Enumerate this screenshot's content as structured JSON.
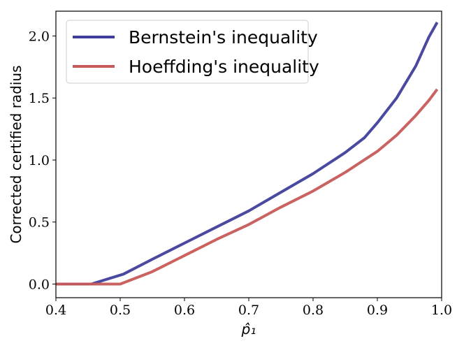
{
  "chart_data": {
    "type": "line",
    "xlabel": "p̂₁",
    "ylabel": "Corrected certified radius",
    "xlim": [
      0.4,
      1.0
    ],
    "ylim": [
      -0.11,
      2.2
    ],
    "xticks": [
      0.4,
      0.5,
      0.6,
      0.7,
      0.8,
      0.9,
      1.0
    ],
    "xtick_labels": [
      "0.4",
      "0.5",
      "0.6",
      "0.7",
      "0.8",
      "0.9",
      "1.0"
    ],
    "yticks": [
      0.0,
      0.5,
      1.0,
      1.5,
      2.0
    ],
    "ytick_labels": [
      "0.0",
      "0.5",
      "1.0",
      "1.5",
      "2.0"
    ],
    "grid": false,
    "legend_position": "top-left",
    "series": [
      {
        "name": "Bernstein's inequality",
        "color": "#3f3f9b",
        "x": [
          0.4,
          0.455,
          0.505,
          0.55,
          0.6,
          0.65,
          0.7,
          0.75,
          0.8,
          0.85,
          0.88,
          0.9,
          0.93,
          0.96,
          0.98,
          0.993
        ],
        "y": [
          0.0,
          0.0,
          0.08,
          0.2,
          0.33,
          0.46,
          0.59,
          0.74,
          0.89,
          1.06,
          1.18,
          1.3,
          1.5,
          1.76,
          1.99,
          2.11
        ]
      },
      {
        "name": "Hoeffding's inequality",
        "color": "#c75a5a",
        "x": [
          0.4,
          0.5,
          0.55,
          0.6,
          0.65,
          0.7,
          0.75,
          0.8,
          0.85,
          0.9,
          0.93,
          0.96,
          0.98,
          0.993
        ],
        "y": [
          0.0,
          0.0,
          0.1,
          0.23,
          0.36,
          0.48,
          0.62,
          0.75,
          0.9,
          1.07,
          1.2,
          1.36,
          1.48,
          1.57
        ]
      }
    ]
  }
}
